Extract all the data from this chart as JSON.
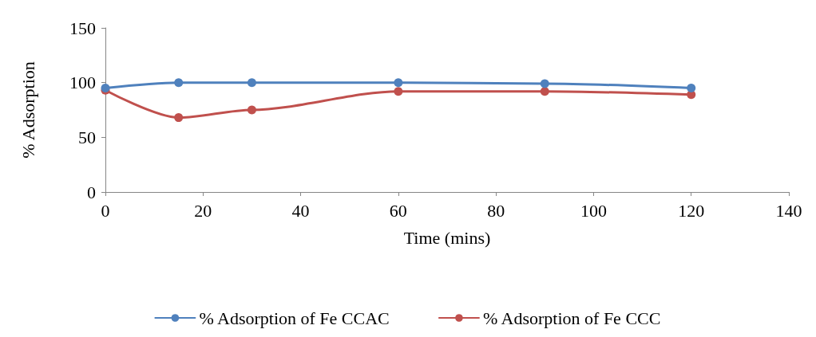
{
  "chart_data": {
    "type": "line",
    "xlabel": "Time (mins)",
    "ylabel": "% Adsorption",
    "x": [
      0,
      15,
      30,
      60,
      90,
      120
    ],
    "series": [
      {
        "name": "% Adsorption of Fe CCAC",
        "color": "#4f81bd",
        "values": [
          95,
          100,
          100,
          100,
          99,
          95
        ]
      },
      {
        "name": "% Adsorption of Fe CCC",
        "color": "#c0504d",
        "values": [
          93,
          68,
          75,
          92,
          92,
          89
        ]
      }
    ],
    "xlim": [
      0,
      140
    ],
    "xticks": [
      0,
      20,
      40,
      60,
      80,
      100,
      120,
      140
    ],
    "ylim": [
      0,
      150
    ],
    "yticks": [
      0,
      50,
      100,
      150
    ],
    "grid": false,
    "legend": "bottom",
    "marker": "circle",
    "line_style": "solid"
  }
}
